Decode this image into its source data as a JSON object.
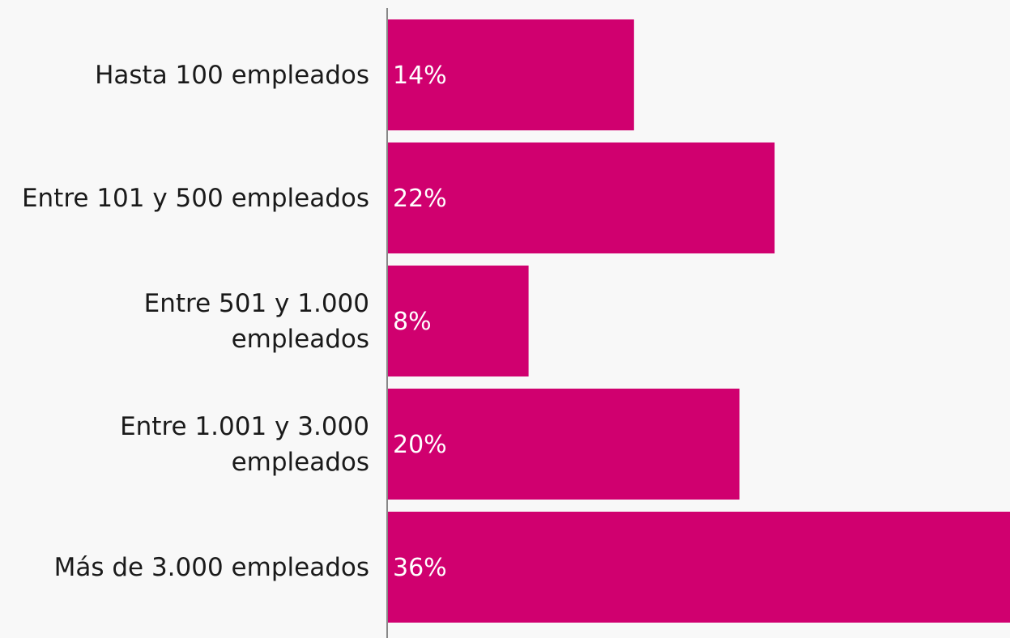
{
  "chart_data": {
    "type": "bar",
    "orientation": "horizontal",
    "categories": [
      "Hasta 100 empleados",
      "Entre 101 y 500 empleados",
      "Entre 501 y 1.000 empleados",
      "Entre 1.001 y 3.000 empleados",
      "Más de 3.000 empleados"
    ],
    "values": [
      14,
      22,
      8,
      20,
      36
    ],
    "value_labels": [
      "14%",
      "22%",
      "8%",
      "20%",
      "36%"
    ],
    "color": "#d0006f"
  }
}
